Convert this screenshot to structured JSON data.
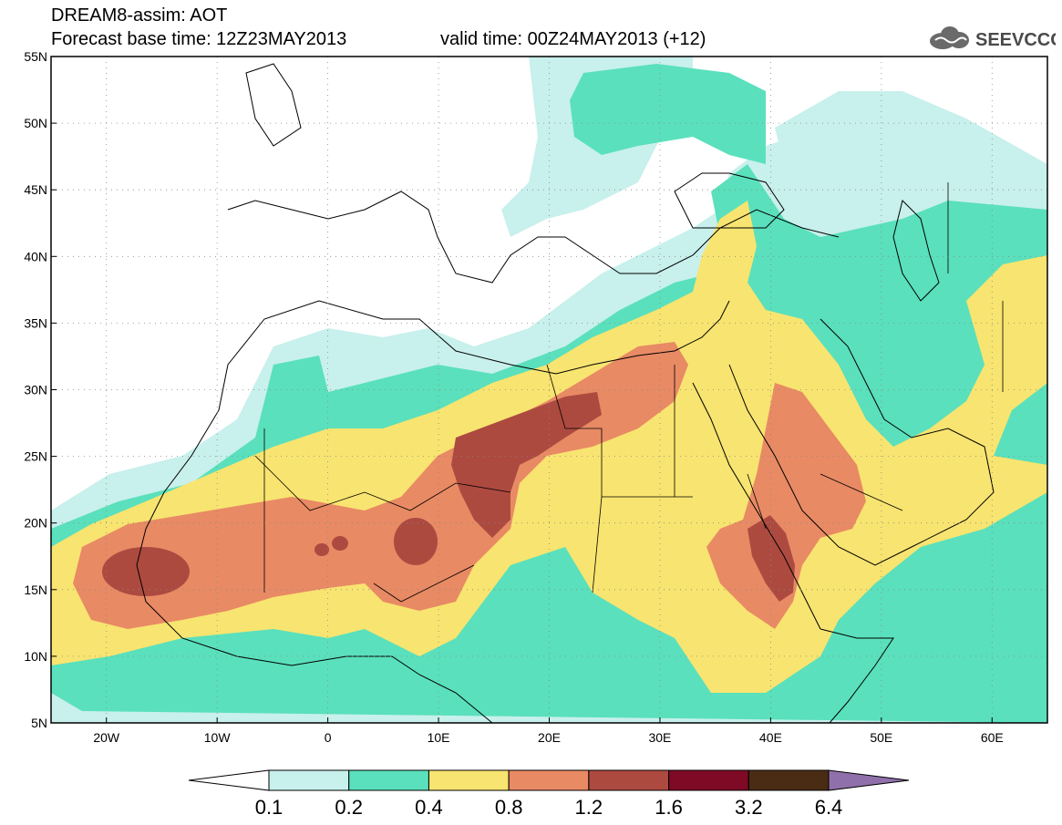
{
  "title": {
    "line1": "DREAM8-assim: AOT",
    "line2": "Forecast base time: 12Z23MAY2013",
    "valid": "valid time: 00Z24MAY2013 (+12)"
  },
  "logo": {
    "text": "SEEVCCC",
    "icon": "cloud-logo-icon"
  },
  "map": {
    "lon_range": [
      -25,
      65
    ],
    "lat_range": [
      5,
      55
    ],
    "lon_ticks": [
      {
        "value": -20,
        "label": "20W"
      },
      {
        "value": -10,
        "label": "10W"
      },
      {
        "value": 0,
        "label": "0"
      },
      {
        "value": 10,
        "label": "10E"
      },
      {
        "value": 20,
        "label": "20E"
      },
      {
        "value": 30,
        "label": "30E"
      },
      {
        "value": 40,
        "label": "40E"
      },
      {
        "value": 50,
        "label": "50E"
      },
      {
        "value": 60,
        "label": "60E"
      }
    ],
    "lat_ticks": [
      {
        "value": 55,
        "label": "55N"
      },
      {
        "value": 50,
        "label": "50N"
      },
      {
        "value": 45,
        "label": "45N"
      },
      {
        "value": 40,
        "label": "40N"
      },
      {
        "value": 35,
        "label": "35N"
      },
      {
        "value": 30,
        "label": "30N"
      },
      {
        "value": 25,
        "label": "25N"
      },
      {
        "value": 20,
        "label": "20N"
      },
      {
        "value": 15,
        "label": "15N"
      },
      {
        "value": 10,
        "label": "10N"
      },
      {
        "value": 5,
        "label": "5N"
      }
    ],
    "grid": true
  },
  "colorbar": {
    "labels": [
      "0.1",
      "0.2",
      "0.4",
      "0.8",
      "1.2",
      "1.6",
      "3.2",
      "6.4"
    ],
    "colors": [
      "#ffffff",
      "#c8f0ec",
      "#5ae0bc",
      "#f8e470",
      "#e88a64",
      "#ad4a40",
      "#7e0a26",
      "#4a2c14",
      "#9070aa"
    ]
  }
}
